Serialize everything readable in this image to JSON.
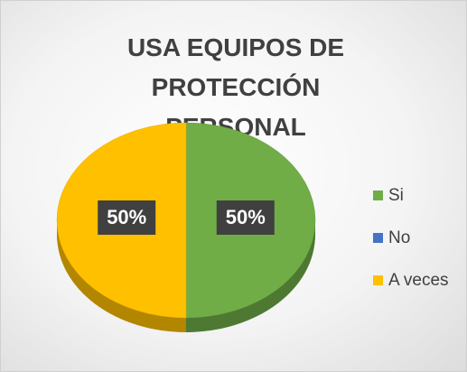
{
  "chart_data": {
    "type": "pie",
    "title": "USA EQUIPOS DE PROTECCIÓN PERSONAL",
    "categories": [
      "Si",
      "No",
      "A veces"
    ],
    "values": [
      50,
      0,
      50
    ],
    "value_labels": [
      "50%",
      null,
      "50%"
    ],
    "colors": [
      "#70ad47",
      "#4472c4",
      "#ffc000"
    ],
    "legend": "right"
  }
}
